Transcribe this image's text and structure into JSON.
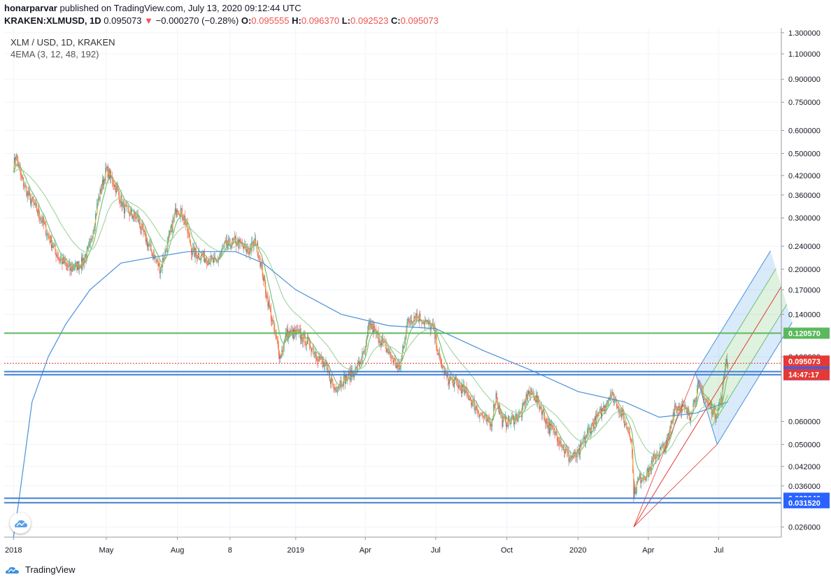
{
  "header": {
    "author": "honarparvar",
    "published_text": "published on TradingView.com, July 13, 2020 09:12:44 UTC",
    "symbol": "KRAKEN:XLMUSD, 1D",
    "last": "0.095073",
    "change_arrow": "▼",
    "change": "−0.000270 (−0.28%)",
    "o_label": "O:",
    "o": "0.095555",
    "h_label": "H:",
    "h": "0.096370",
    "l_label": "L:",
    "l": "0.092523",
    "c_label": "C:",
    "c": "0.095073"
  },
  "overlay": {
    "title": "XLM / USD, 1D, KRAKEN",
    "indicator": "4EMA (3, 12, 48, 192)"
  },
  "footer": {
    "brand": "TradingView",
    "logo_icon": "tradingview-cloud-icon"
  },
  "colors": {
    "up": "#26a69a",
    "down": "#ef5350",
    "ema3": "#f7a23b",
    "ema12": "#6fbf73",
    "ema48": "#9fd39c",
    "ema192": "#4a90d9",
    "hline_green": "#5cb85c",
    "hline_blue": "#3f7fd6",
    "current_price": "#e53935",
    "axis_label_blue": "#2962ff"
  },
  "chart_data": {
    "type": "candlestick",
    "symbol": "XLM / USD",
    "exchange": "KRAKEN",
    "timeframe": "1D",
    "y_scale": "log",
    "ylim": [
      0.024,
      1.35
    ],
    "xlim": [
      "2017-12-20",
      "2020-09-20"
    ],
    "y_ticks": [
      "1.300000",
      "1.100000",
      "0.900000",
      "0.750000",
      "0.600000",
      "0.500000",
      "0.420000",
      "0.360000",
      "0.300000",
      "0.240000",
      "0.200000",
      "0.170000",
      "0.140000",
      "0.100000",
      "0.060000",
      "0.050000",
      "0.042000",
      "0.036000",
      "0.026000"
    ],
    "x_ticks": [
      {
        "label": "2018",
        "date": "2018-01-01"
      },
      {
        "label": "May",
        "date": "2018-05-01"
      },
      {
        "label": "Aug",
        "date": "2018-08-01"
      },
      {
        "label": "8",
        "date": "2018-10-08"
      },
      {
        "label": "2019",
        "date": "2019-01-01"
      },
      {
        "label": "Apr",
        "date": "2019-04-01"
      },
      {
        "label": "Jul",
        "date": "2019-07-01"
      },
      {
        "label": "Oct",
        "date": "2019-10-01"
      },
      {
        "label": "2020",
        "date": "2020-01-01"
      },
      {
        "label": "Apr",
        "date": "2020-04-01"
      },
      {
        "label": "Jul",
        "date": "2020-07-01"
      }
    ],
    "price_path": [
      [
        "2018-01-01",
        0.45
      ],
      [
        "2018-01-04",
        0.5
      ],
      [
        "2018-01-10",
        0.42
      ],
      [
        "2018-01-20",
        0.36
      ],
      [
        "2018-02-06",
        0.3
      ],
      [
        "2018-02-15",
        0.26
      ],
      [
        "2018-02-28",
        0.22
      ],
      [
        "2018-03-15",
        0.2
      ],
      [
        "2018-03-30",
        0.21
      ],
      [
        "2018-04-10",
        0.24
      ],
      [
        "2018-04-20",
        0.34
      ],
      [
        "2018-05-01",
        0.44
      ],
      [
        "2018-05-10",
        0.4
      ],
      [
        "2018-05-25",
        0.32
      ],
      [
        "2018-06-10",
        0.3
      ],
      [
        "2018-06-25",
        0.24
      ],
      [
        "2018-07-10",
        0.2
      ],
      [
        "2018-07-25",
        0.28
      ],
      [
        "2018-07-31",
        0.33
      ],
      [
        "2018-08-10",
        0.3
      ],
      [
        "2018-08-20",
        0.23
      ],
      [
        "2018-09-05",
        0.22
      ],
      [
        "2018-09-20",
        0.21
      ],
      [
        "2018-10-01",
        0.24
      ],
      [
        "2018-10-15",
        0.25
      ],
      [
        "2018-11-01",
        0.23
      ],
      [
        "2018-11-10",
        0.25
      ],
      [
        "2018-11-15",
        0.22
      ],
      [
        "2018-11-25",
        0.16
      ],
      [
        "2018-12-05",
        0.12
      ],
      [
        "2018-12-12",
        0.1
      ],
      [
        "2018-12-20",
        0.12
      ],
      [
        "2019-01-05",
        0.12
      ],
      [
        "2019-01-20",
        0.11
      ],
      [
        "2019-02-10",
        0.09
      ],
      [
        "2019-02-20",
        0.078
      ],
      [
        "2019-03-05",
        0.084
      ],
      [
        "2019-03-20",
        0.09
      ],
      [
        "2019-04-01",
        0.105
      ],
      [
        "2019-04-06",
        0.13
      ],
      [
        "2019-04-20",
        0.115
      ],
      [
        "2019-05-05",
        0.1
      ],
      [
        "2019-05-15",
        0.09
      ],
      [
        "2019-05-25",
        0.13
      ],
      [
        "2019-06-05",
        0.14
      ],
      [
        "2019-06-20",
        0.13
      ],
      [
        "2019-06-28",
        0.125
      ],
      [
        "2019-07-05",
        0.1
      ],
      [
        "2019-07-15",
        0.085
      ],
      [
        "2019-07-30",
        0.08
      ],
      [
        "2019-08-10",
        0.075
      ],
      [
        "2019-08-25",
        0.065
      ],
      [
        "2019-09-10",
        0.058
      ],
      [
        "2019-09-17",
        0.074
      ],
      [
        "2019-09-25",
        0.06
      ],
      [
        "2019-10-05",
        0.06
      ],
      [
        "2019-10-20",
        0.064
      ],
      [
        "2019-10-28",
        0.075
      ],
      [
        "2019-11-05",
        0.074
      ],
      [
        "2019-11-15",
        0.066
      ],
      [
        "2019-11-25",
        0.057
      ],
      [
        "2019-12-05",
        0.054
      ],
      [
        "2019-12-20",
        0.045
      ],
      [
        "2020-01-01",
        0.046
      ],
      [
        "2020-01-15",
        0.056
      ],
      [
        "2020-02-01",
        0.065
      ],
      [
        "2020-02-12",
        0.075
      ],
      [
        "2020-02-20",
        0.07
      ],
      [
        "2020-03-01",
        0.06
      ],
      [
        "2020-03-10",
        0.053
      ],
      [
        "2020-03-13",
        0.034
      ],
      [
        "2020-03-20",
        0.038
      ],
      [
        "2020-04-01",
        0.04
      ],
      [
        "2020-04-10",
        0.046
      ],
      [
        "2020-04-25",
        0.05
      ],
      [
        "2020-05-05",
        0.068
      ],
      [
        "2020-05-15",
        0.067
      ],
      [
        "2020-05-25",
        0.063
      ],
      [
        "2020-06-05",
        0.08
      ],
      [
        "2020-06-15",
        0.07
      ],
      [
        "2020-06-27",
        0.064
      ],
      [
        "2020-07-05",
        0.072
      ],
      [
        "2020-07-10",
        0.098
      ],
      [
        "2020-07-13",
        0.095073
      ]
    ],
    "ema192_path": [
      [
        "2018-01-01",
        0.024
      ],
      [
        "2018-01-08",
        0.032
      ],
      [
        "2018-01-25",
        0.07
      ],
      [
        "2018-02-15",
        0.1
      ],
      [
        "2018-03-10",
        0.13
      ],
      [
        "2018-04-10",
        0.17
      ],
      [
        "2018-05-20",
        0.21
      ],
      [
        "2018-07-01",
        0.22
      ],
      [
        "2018-08-15",
        0.23
      ],
      [
        "2018-10-15",
        0.23
      ],
      [
        "2018-11-20",
        0.21
      ],
      [
        "2019-01-01",
        0.17
      ],
      [
        "2019-03-01",
        0.14
      ],
      [
        "2019-05-01",
        0.128
      ],
      [
        "2019-07-01",
        0.125
      ],
      [
        "2019-09-01",
        0.105
      ],
      [
        "2019-11-01",
        0.09
      ],
      [
        "2020-01-01",
        0.076
      ],
      [
        "2020-03-01",
        0.07
      ],
      [
        "2020-04-15",
        0.062
      ],
      [
        "2020-06-01",
        0.064
      ],
      [
        "2020-07-13",
        0.07
      ]
    ],
    "horizontal_levels": [
      {
        "value": 0.12057,
        "label": "0.120570",
        "color": "green"
      },
      {
        "value": 0.08892,
        "label": "0.088920",
        "color": "blue"
      },
      {
        "value": 0.086785,
        "label": "0.086785",
        "color": "blue"
      },
      {
        "value": 0.032646,
        "label": "0.032646",
        "color": "blue"
      },
      {
        "value": 0.03152,
        "label": "0.031520",
        "color": "blue"
      }
    ],
    "current_price": {
      "value": 0.095073,
      "label": "0.095073",
      "countdown": "14:47:17"
    },
    "pitchfork": {
      "points": [
        [
          "2020-03-13",
          0.026
        ],
        [
          "2020-06-01",
          0.088
        ],
        [
          "2020-06-29",
          0.05
        ]
      ]
    }
  }
}
